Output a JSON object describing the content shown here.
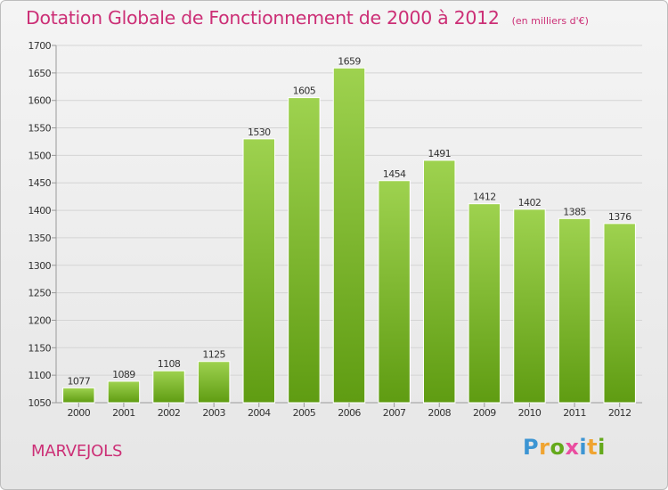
{
  "title": "Dotation Globale de Fonctionnement de 2000 à 2012",
  "subtitle": "(en milliers d'€)",
  "town": "MARVEJOLS",
  "brand": {
    "text": "Proxiti",
    "letter_colors": [
      "#3c95d3",
      "#f0a431",
      "#64a91b",
      "#ea4da0",
      "#3c95d3",
      "#f0a431",
      "#64a91b"
    ]
  },
  "colors": {
    "title": "#cc2f76",
    "bar_top": "#9ed24f",
    "bar_bottom": "#5f9c12"
  },
  "chart_data": {
    "type": "bar",
    "categories": [
      "2000",
      "2001",
      "2002",
      "2003",
      "2004",
      "2005",
      "2006",
      "2007",
      "2008",
      "2009",
      "2010",
      "2011",
      "2012"
    ],
    "values": [
      1077,
      1089,
      1108,
      1125,
      1530,
      1605,
      1659,
      1454,
      1491,
      1412,
      1402,
      1385,
      1376
    ],
    "ylim": [
      1050,
      1700
    ],
    "yticks": [
      1050,
      1100,
      1150,
      1200,
      1250,
      1300,
      1350,
      1400,
      1450,
      1500,
      1550,
      1600,
      1650,
      1700
    ],
    "grid": true,
    "data_labels": true
  }
}
